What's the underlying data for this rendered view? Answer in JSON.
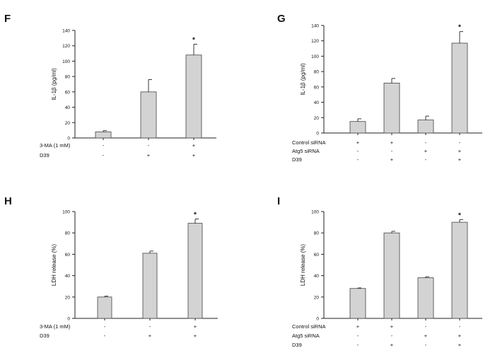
{
  "panels": [
    {
      "letter": "F",
      "chart_data": {
        "type": "bar",
        "ylabel": "IL-1β (pg/ml)",
        "ylim": [
          0,
          140
        ],
        "yticks": [
          0,
          20,
          40,
          60,
          80,
          100,
          120,
          140
        ],
        "values": [
          8,
          60,
          108
        ],
        "errors": [
          1.5,
          16,
          14
        ],
        "significance": [
          "",
          "",
          "*"
        ],
        "treatments": [
          {
            "label": "3-MA (1 mM)",
            "marks": [
              "-",
              "-",
              "+"
            ]
          },
          {
            "label": "D39",
            "marks": [
              "-",
              "+",
              "+"
            ]
          }
        ]
      }
    },
    {
      "letter": "G",
      "chart_data": {
        "type": "bar",
        "ylabel": "IL-1β (pg/ml)",
        "ylim": [
          0,
          140
        ],
        "yticks": [
          0,
          20,
          40,
          60,
          80,
          100,
          120,
          140
        ],
        "values": [
          15,
          65,
          17,
          117
        ],
        "errors": [
          3.5,
          6,
          5,
          15
        ],
        "significance": [
          "",
          "",
          "",
          "*"
        ],
        "treatments": [
          {
            "label": "Control siRNA",
            "marks": [
              "+",
              "+",
              "-",
              "-"
            ]
          },
          {
            "label": "Atg5 siRNA",
            "marks": [
              "-",
              "-",
              "+",
              "+"
            ]
          },
          {
            "label": "D39",
            "marks": [
              "-",
              "+",
              "-",
              "+"
            ]
          }
        ]
      }
    },
    {
      "letter": "H",
      "chart_data": {
        "type": "bar",
        "ylabel": "LDH release (%)",
        "ylim": [
          0,
          100
        ],
        "yticks": [
          0,
          20,
          40,
          60,
          80,
          100
        ],
        "values": [
          20,
          61,
          89
        ],
        "errors": [
          0.8,
          2,
          4
        ],
        "significance": [
          "",
          "",
          "*"
        ],
        "treatments": [
          {
            "label": "3-MA (1 mM)",
            "marks": [
              "-",
              "-",
              "+"
            ]
          },
          {
            "label": "D39",
            "marks": [
              "-",
              "+",
              "+"
            ]
          }
        ]
      }
    },
    {
      "letter": "I",
      "chart_data": {
        "type": "bar",
        "ylabel": "LDH release (%)",
        "ylim": [
          0,
          100
        ],
        "yticks": [
          0,
          20,
          40,
          60,
          80,
          100
        ],
        "values": [
          28,
          80,
          38,
          90
        ],
        "errors": [
          0.5,
          1.5,
          1,
          2.5
        ],
        "significance": [
          "",
          "",
          "",
          "*"
        ],
        "treatments": [
          {
            "label": "Control siRNA",
            "marks": [
              "+",
              "+",
              "-",
              "-"
            ]
          },
          {
            "label": "Atg5 siRNA",
            "marks": [
              "-",
              "-",
              "+",
              "+"
            ]
          },
          {
            "label": "D39",
            "marks": [
              "-",
              "+",
              "-",
              "+"
            ]
          }
        ]
      }
    }
  ],
  "colors": {
    "bar_fill": "#d3d3d3",
    "bar_stroke": "#444444",
    "axis": "#222222",
    "text": "#111111"
  }
}
